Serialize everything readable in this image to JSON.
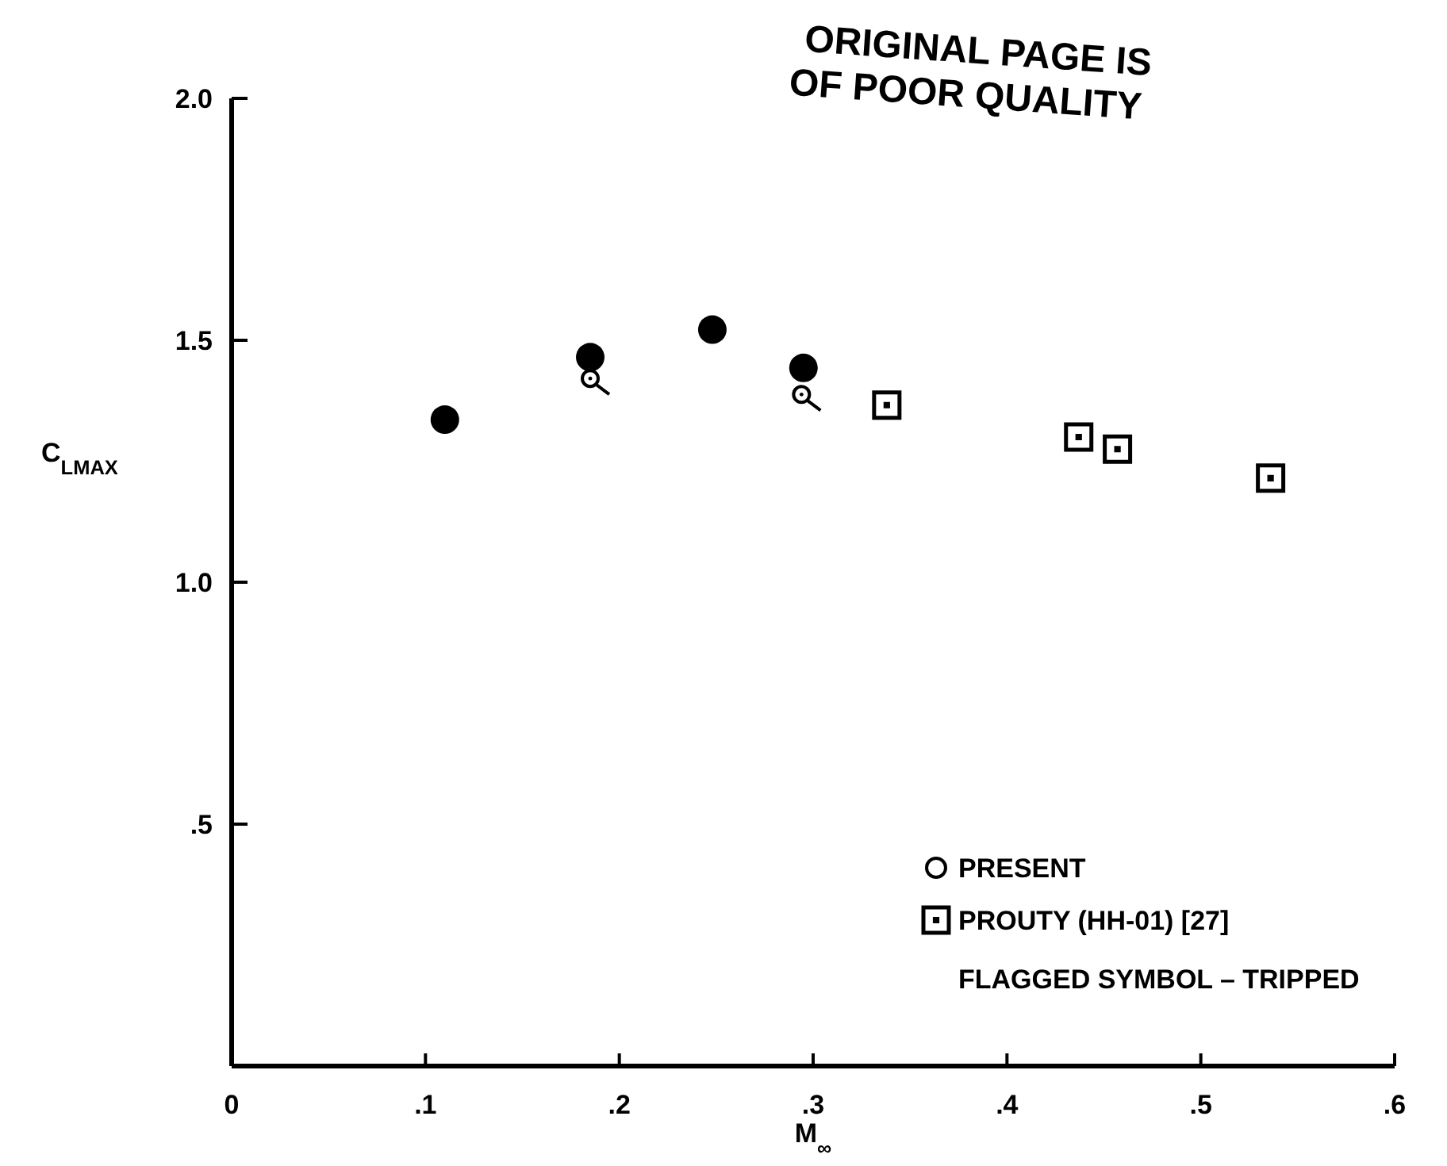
{
  "chart_data": {
    "type": "scatter",
    "xlabel": "M$_{∞}$",
    "ylabel": "C$_{LMAX}$",
    "xlim": [
      0,
      0.6
    ],
    "ylim": [
      0,
      2.0
    ],
    "xticks": [
      0,
      {
        "value": 0.1,
        "label": ".1"
      },
      {
        "value": 0.2,
        "label": ".2"
      },
      {
        "value": 0.3,
        "label": ".3"
      },
      {
        "value": 0.4,
        "label": ".4"
      },
      {
        "value": 0.5,
        "label": ".5"
      },
      {
        "value": 0.6,
        "label": ".6"
      }
    ],
    "yticks": [
      {
        "value": 0.5,
        "label": ".5"
      },
      {
        "value": 1.0,
        "label": "1.0"
      },
      {
        "value": 1.5,
        "label": "1.5"
      },
      {
        "value": 2.0,
        "label": "2.0"
      }
    ],
    "series": [
      {
        "color": "#000000",
        "x": [
          0.11,
          0.185,
          0.248,
          0.295
        ],
        "values": [
          1.336,
          1.465,
          1.522,
          1.443
        ]
      },
      {
        "name": "PRESENT",
        "color": "#000000",
        "x": [
          0.185,
          0.294
        ],
        "values": [
          1.421,
          1.388
        ]
      },
      {
        "name": "PROUTY (HH-01)  [27]",
        "color": "#000000",
        "x": [
          0.338,
          0.437,
          0.457,
          0.536
        ],
        "values": [
          1.366,
          1.3,
          1.275,
          1.215
        ]
      }
    ],
    "legend": "bottom right",
    "grid": false,
    "annotations": [
      "FLAGGED SYMBOL – TRIPPED",
      "ORIGINAL PAGE IS OF POOR QUALITY"
    ]
  }
}
